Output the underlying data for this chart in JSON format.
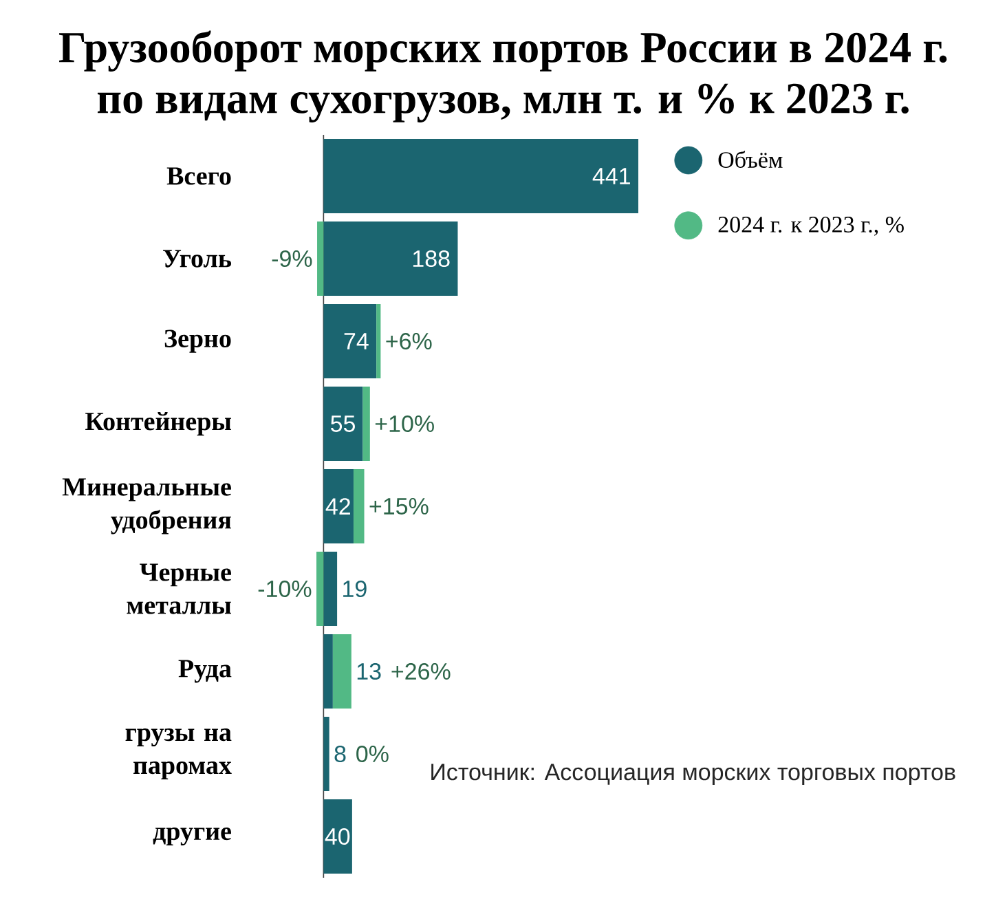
{
  "chart_data": {
    "type": "bar",
    "orientation": "horizontal",
    "stacked": true,
    "title": "Грузооборот морских портов России в 2024 г. по видам сухогрузов, млн т. и % к 2023 г.",
    "categories": [
      "Всего",
      "Уголь",
      "Зерно",
      "Контейнеры",
      "Минеральные удобрения",
      "Черные металлы",
      "Руда",
      "грузы на паромах",
      "другие"
    ],
    "series": [
      {
        "name": "Объём",
        "color": "#1b6570",
        "values": [
          441,
          188,
          74,
          55,
          42,
          19,
          13,
          8,
          40
        ],
        "value_labels": [
          "441",
          "188",
          "74",
          "55",
          "42",
          "19",
          "13",
          "8",
          "40"
        ]
      },
      {
        "name": "2024 г. к 2023 г., %",
        "color": "#52b985",
        "values": [
          null,
          -9,
          6,
          10,
          15,
          -10,
          26,
          0,
          null
        ],
        "value_labels": [
          null,
          "-9%",
          "+6%",
          "+10%",
          "+15%",
          "-10%",
          "+26%",
          "0%",
          null
        ]
      }
    ],
    "legend": "top right",
    "annotations": [
      "Источник: Ассоциация морских торговых портов"
    ]
  }
}
